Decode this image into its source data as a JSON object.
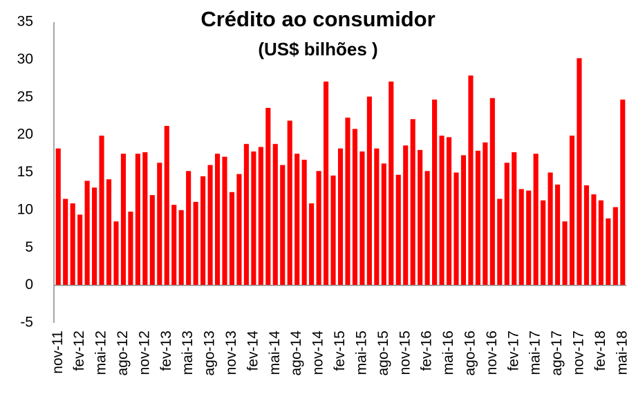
{
  "chart_data": {
    "type": "bar",
    "title": "Crédito ao consumidor",
    "subtitle": "(US$ bilhões )",
    "categories": [
      "nov-11",
      null,
      null,
      "fev-12",
      null,
      null,
      "mai-12",
      null,
      null,
      "ago-12",
      null,
      null,
      "nov-12",
      null,
      null,
      "fev-13",
      null,
      null,
      "mai-13",
      null,
      null,
      "ago-13",
      null,
      null,
      "nov-13",
      null,
      null,
      "fev-14",
      null,
      null,
      "mai-14",
      null,
      null,
      "ago-14",
      null,
      null,
      "nov-14",
      null,
      null,
      "fev-15",
      null,
      null,
      "mai-15",
      null,
      null,
      "ago-15",
      null,
      null,
      "nov-15",
      null,
      null,
      "fev-16",
      null,
      null,
      "mai-16",
      null,
      null,
      "ago-16",
      null,
      null,
      "nov-16",
      null,
      null,
      "fev-17",
      null,
      null,
      "mai-17",
      null,
      null,
      "ago-17",
      null,
      null,
      "nov-17",
      null,
      null,
      "fev-18",
      null,
      null,
      "mai-18"
    ],
    "values": [
      18.2,
      11.5,
      10.9,
      9.4,
      13.9,
      13.0,
      19.9,
      14.1,
      8.5,
      17.5,
      9.8,
      17.5,
      17.7,
      12.0,
      16.3,
      21.2,
      10.7,
      10.0,
      15.2,
      11.1,
      14.5,
      16.0,
      17.5,
      17.1,
      12.4,
      14.8,
      18.8,
      17.8,
      18.4,
      23.6,
      18.8,
      16.0,
      21.9,
      17.5,
      16.7,
      10.9,
      15.2,
      27.1,
      14.6,
      18.2,
      22.3,
      20.8,
      17.8,
      25.1,
      18.2,
      16.2,
      27.1,
      14.7,
      18.6,
      22.1,
      18.0,
      15.2,
      24.7,
      19.9,
      19.7,
      15.0,
      17.3,
      27.9,
      17.9,
      19.0,
      24.9,
      11.5,
      16.3,
      17.7,
      12.8,
      12.6,
      17.5,
      11.3,
      15.0,
      13.4,
      8.5,
      19.9,
      30.2,
      13.3,
      12.1,
      11.3,
      8.9,
      10.4,
      24.7
    ],
    "color": "#ff0000",
    "ylim": [
      -5,
      35
    ],
    "yticks": [
      -5,
      0,
      5,
      10,
      15,
      20,
      25,
      30,
      35
    ],
    "grid": false
  }
}
